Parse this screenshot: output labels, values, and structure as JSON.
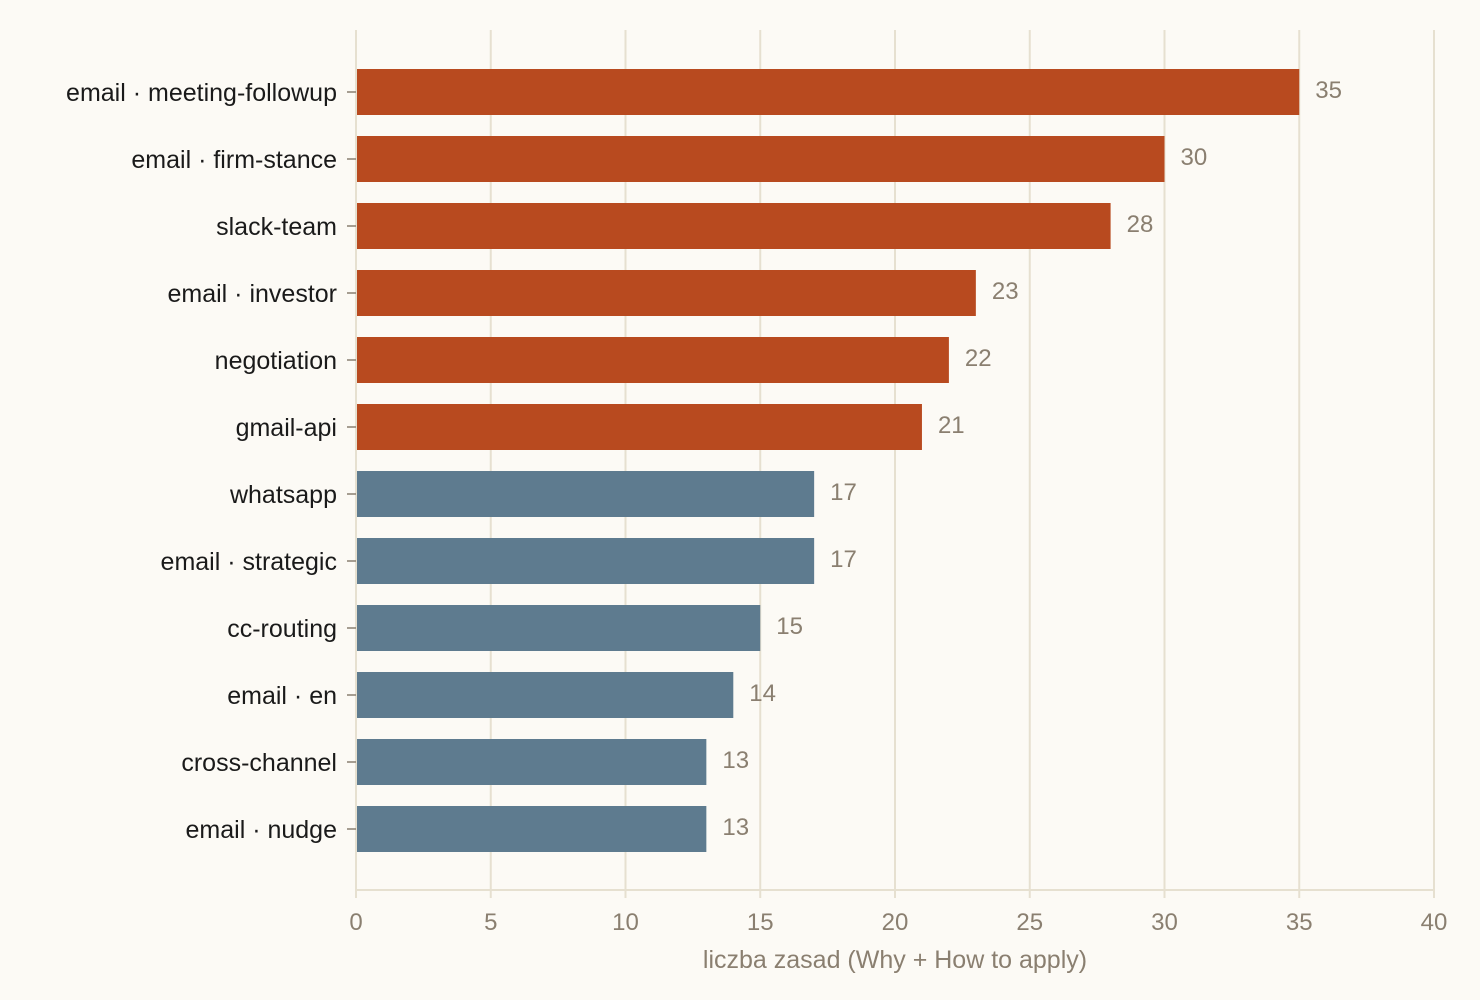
{
  "chart_data": {
    "type": "bar",
    "orientation": "horizontal",
    "categories": [
      "email · meeting-followup",
      "email · firm-stance",
      "slack-team",
      "email · investor",
      "negotiation",
      "gmail-api",
      "whatsapp",
      "email · strategic",
      "cc-routing",
      "email · en",
      "cross-channel",
      "email · nudge"
    ],
    "values": [
      35,
      30,
      28,
      23,
      22,
      21,
      17,
      17,
      15,
      14,
      13,
      13
    ],
    "highlighted": [
      true,
      true,
      true,
      true,
      true,
      true,
      false,
      false,
      false,
      false,
      false,
      false
    ],
    "colors": {
      "highlight": "#b84a1f",
      "normal": "#5e7b8f",
      "grid": "#e6e0d0",
      "background": "#fcfaf5"
    },
    "xlabel": "liczba zasad (Why + How to apply)",
    "xlim": [
      0,
      40
    ],
    "xticks": [
      0,
      5,
      10,
      15,
      20,
      25,
      30,
      35,
      40
    ],
    "grid": "vertical",
    "value_labels": true
  }
}
